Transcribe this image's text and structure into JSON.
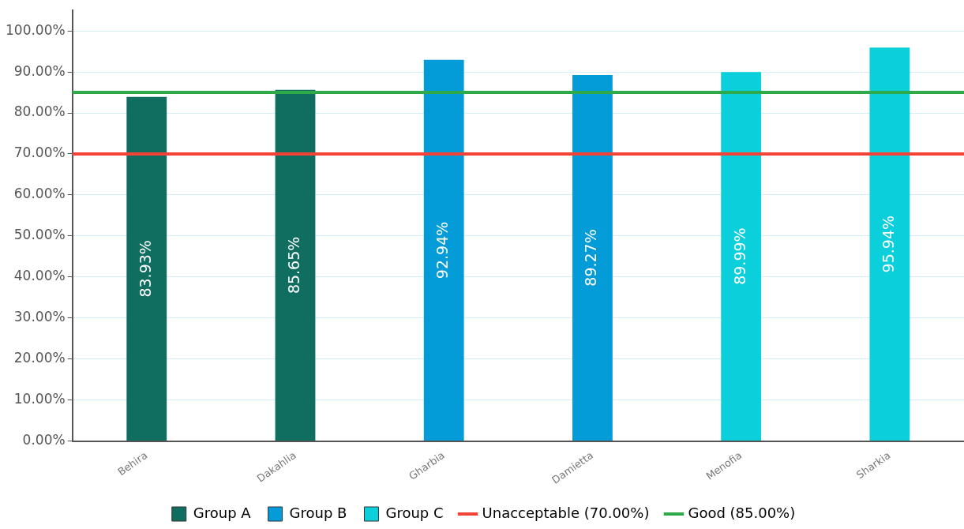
{
  "chart_data": {
    "type": "bar",
    "categories": [
      "Behira",
      "Dakahlia",
      "Gharbia",
      "Damietta",
      "Menofia",
      "Sharkia"
    ],
    "series": [
      {
        "name": "Group A",
        "color": "#0f6e5f",
        "values": [
          83.93,
          85.65,
          null,
          null,
          null,
          null
        ]
      },
      {
        "name": "Group B",
        "color": "#039bd8",
        "values": [
          null,
          null,
          92.94,
          89.27,
          null,
          null
        ]
      },
      {
        "name": "Group C",
        "color": "#0bcfda",
        "values": [
          null,
          null,
          null,
          null,
          89.99,
          95.94
        ]
      }
    ],
    "ylim": [
      0,
      105
    ],
    "yticks": [
      {
        "value": 0,
        "label": "0.00%"
      },
      {
        "value": 10,
        "label": "10.00%"
      },
      {
        "value": 20,
        "label": "20.00%"
      },
      {
        "value": 30,
        "label": "30.00%"
      },
      {
        "value": 40,
        "label": "40.00%"
      },
      {
        "value": 50,
        "label": "50.00%"
      },
      {
        "value": 60,
        "label": "60.00%"
      },
      {
        "value": 70,
        "label": "70.00%"
      },
      {
        "value": 80,
        "label": "80.00%"
      },
      {
        "value": 90,
        "label": "90.00%"
      },
      {
        "value": 100,
        "label": "100.00%"
      }
    ],
    "ref_lines": [
      {
        "axis": "y",
        "value": 70,
        "label": "Unacceptable (70.00%)",
        "color": "#f44336"
      },
      {
        "axis": "y",
        "value": 85,
        "label": "Good (85.00%)",
        "color": "#2eaa4a"
      }
    ],
    "value_labels": [
      [
        "83.93%",
        "85.65%",
        null,
        null,
        null,
        null
      ],
      [
        null,
        null,
        "92.94%",
        "89.27%",
        null,
        null
      ],
      [
        null,
        null,
        null,
        null,
        "89.99%",
        "95.94%"
      ]
    ],
    "grid": "y",
    "legend": "bottom"
  }
}
